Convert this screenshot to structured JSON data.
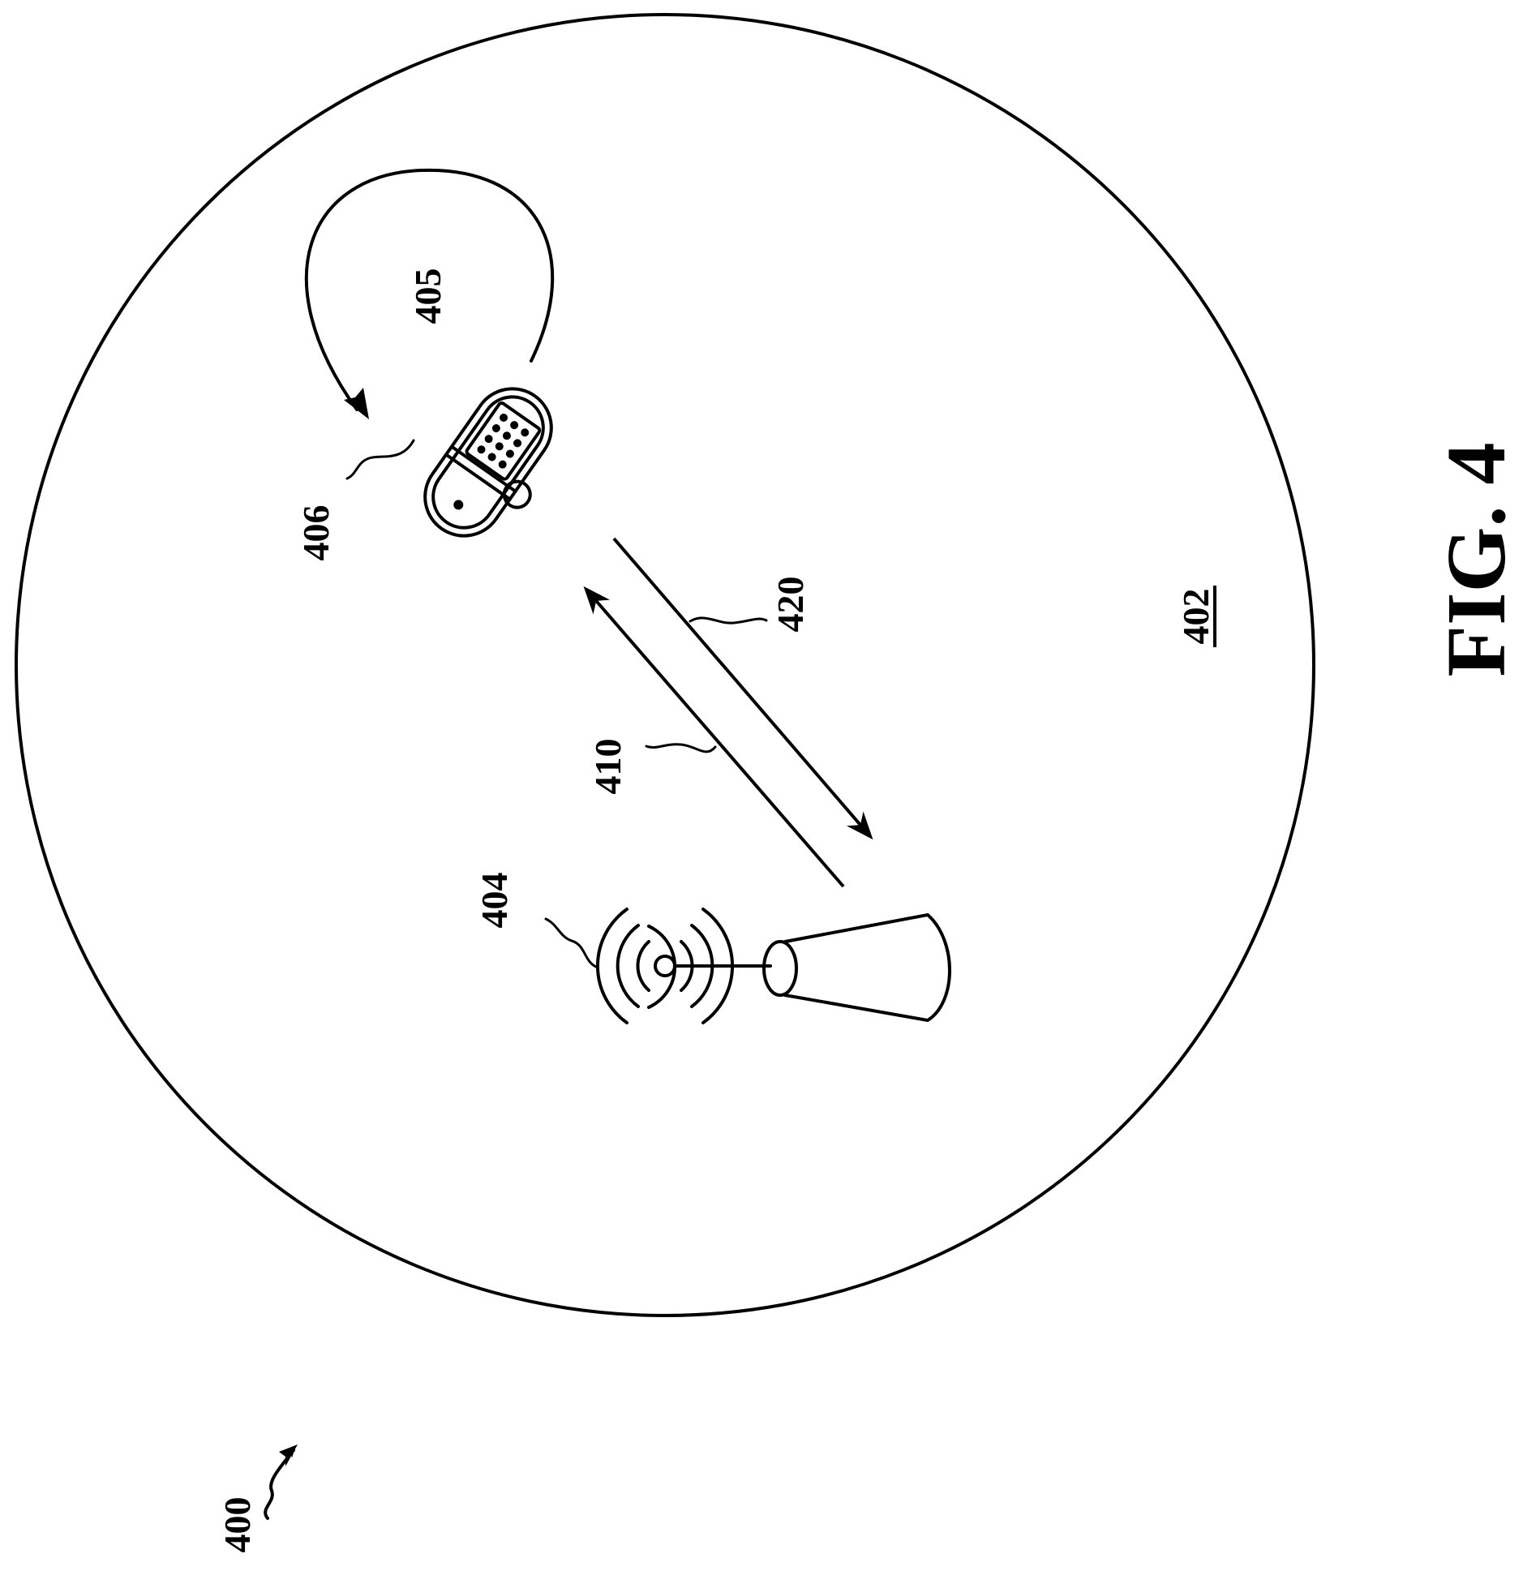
{
  "figure": {
    "label": "FIG. 4",
    "refs": {
      "system": "400",
      "coverage_area": "402",
      "base_station": "404",
      "rotation": "405",
      "user_device": "406",
      "downlink": "410",
      "uplink": "420"
    }
  }
}
